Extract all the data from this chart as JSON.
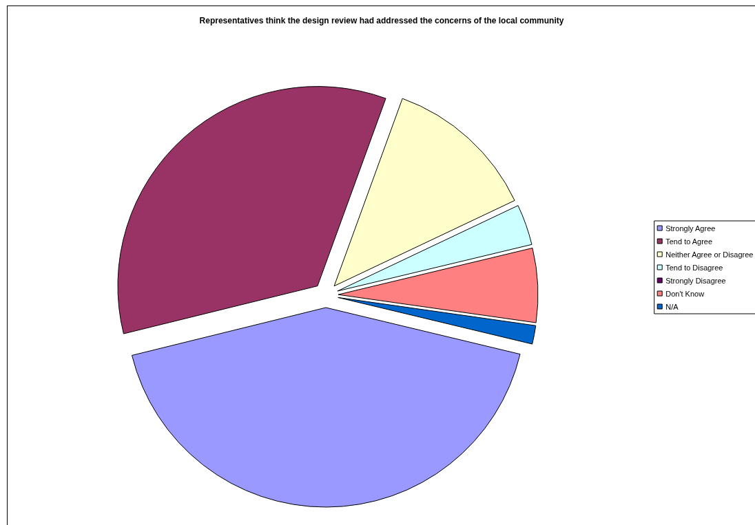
{
  "chart_data": {
    "type": "pie",
    "title": "Representatives think the design review had addressed the concerns of the local community",
    "categories": [
      "Strongly Agree",
      "Tend to Agree",
      "Neither Agree or Disagree",
      "Tend to Disagree",
      "Strongly Disagree",
      "Don't Know",
      "N/A"
    ],
    "values": [
      42.4,
      34.4,
      12.4,
      3.3,
      0,
      6,
      1.5
    ],
    "colors": [
      "#9999ff",
      "#993366",
      "#ffffcc",
      "#ccffff",
      "#660066",
      "#ff8080",
      "#0066cc"
    ],
    "legend": "right"
  }
}
